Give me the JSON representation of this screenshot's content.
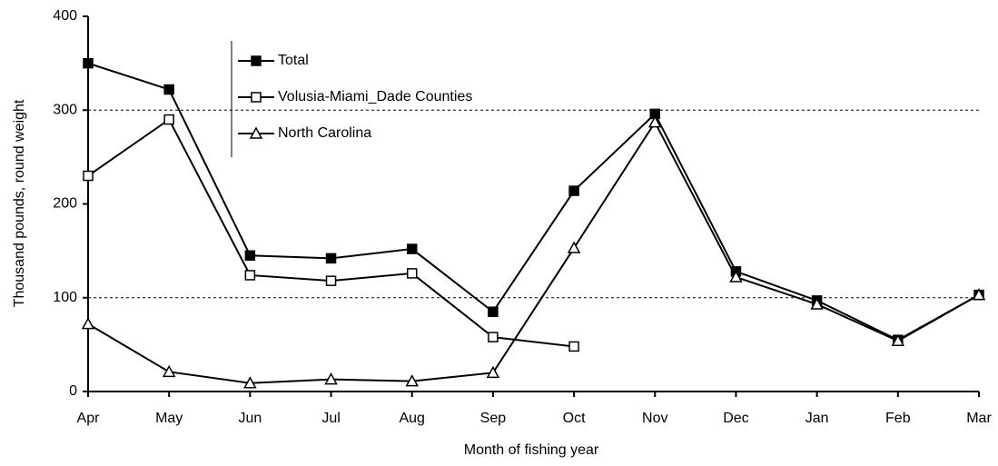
{
  "chart_data": {
    "type": "line",
    "x_label": "Month of fishing year",
    "y_label": "Thousand pounds, round weight",
    "categories": [
      "Apr",
      "May",
      "Jun",
      "Jul",
      "Aug",
      "Sep",
      "Oct",
      "Nov",
      "Dec",
      "Jan",
      "Feb",
      "Mar"
    ],
    "series": [
      {
        "name": "Total",
        "color": "#000000",
        "marker": "square-filled",
        "values": [
          350,
          322,
          145,
          142,
          152,
          85,
          214,
          296,
          128,
          97,
          55,
          103
        ]
      },
      {
        "name": "Volusia-Miami_Dade Counties",
        "color": "#000000",
        "marker": "square-open",
        "values": [
          230,
          290,
          124,
          118,
          126,
          58,
          48,
          null,
          null,
          null,
          null,
          null
        ]
      },
      {
        "name": "North Carolina",
        "color": "#000000",
        "marker": "triangle-open",
        "values": [
          72,
          21,
          9,
          13,
          11,
          20,
          153,
          287,
          122,
          93,
          54,
          103
        ]
      }
    ],
    "ylim": [
      0,
      400
    ],
    "yticks": [
      0,
      100,
      200,
      300,
      400
    ],
    "gridlines": [
      100,
      300
    ]
  }
}
